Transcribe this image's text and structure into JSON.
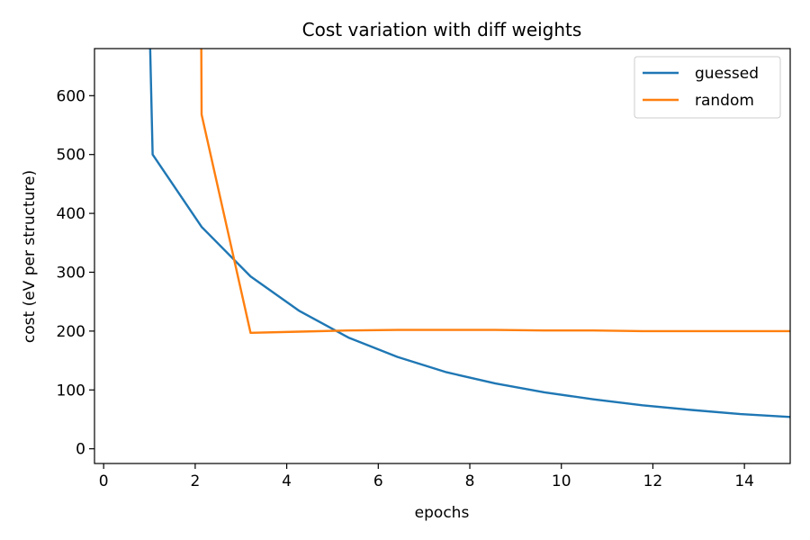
{
  "chart_data": {
    "type": "line",
    "title": "Cost variation with diff weights",
    "xlabel": "epochs",
    "ylabel": "cost (eV per structure)",
    "xlim": [
      -0.2,
      15
    ],
    "ylim": [
      -25,
      680
    ],
    "xticks": [
      0,
      2,
      4,
      6,
      8,
      10,
      12,
      14
    ],
    "yticks": [
      0,
      100,
      200,
      300,
      400,
      500,
      600
    ],
    "grid": false,
    "legend": "top-right",
    "series": [
      {
        "name": "guessed",
        "color": "#1f77b4",
        "x": [
          0.95,
          1.07,
          2.14,
          3.21,
          4.28,
          5.35,
          6.42,
          7.49,
          8.56,
          9.63,
          10.7,
          11.77,
          12.84,
          13.91,
          15.0
        ],
        "y": [
          900,
          500,
          377,
          293,
          234,
          189,
          156,
          130,
          111,
          96,
          84,
          74,
          66,
          59,
          54
        ]
      },
      {
        "name": "random",
        "color": "#ff7f0e",
        "x": [
          2.12,
          2.14,
          3.21,
          4.28,
          5.35,
          6.42,
          7.49,
          8.56,
          9.63,
          10.7,
          11.77,
          12.84,
          13.91,
          15.0
        ],
        "y": [
          900,
          568,
          197,
          199,
          201,
          202,
          202,
          202,
          201,
          201,
          200,
          200,
          200,
          200
        ]
      }
    ]
  }
}
